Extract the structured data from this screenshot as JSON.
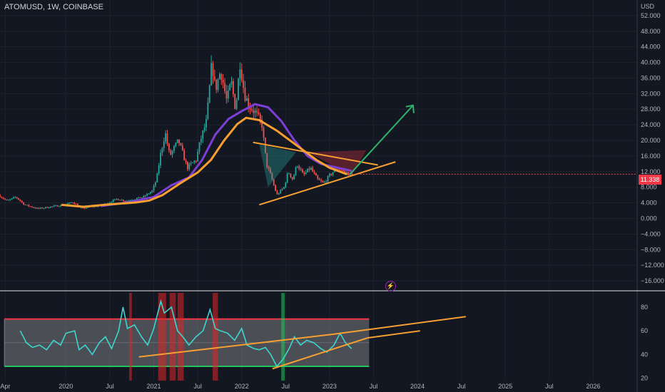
{
  "header": {
    "title": "ATOMUSD, 1W, COINBASE"
  },
  "price_tag": "11.338",
  "icons": {
    "replay": "lightning-icon"
  },
  "colors": {
    "background": "#131722",
    "up": "#26a69a",
    "down": "#ef5350",
    "ma_fast": "#7e3fd6",
    "ma_slow": "#f7a031",
    "rsi": "#3ed6cf",
    "trend": "#f7a031",
    "projection": "#2db36a",
    "band_top": "#f23645",
    "band_bottom": "#22c55e"
  },
  "chart_data": [
    {
      "type": "candlestick",
      "title": "ATOMUSD, 1W, COINBASE",
      "ylabel": "USD",
      "ylim": [
        -18,
        56
      ],
      "y_ticks": [
        "52.000",
        "48.000",
        "44.000",
        "40.000",
        "36.000",
        "32.000",
        "28.000",
        "24.000",
        "20.000",
        "16.000",
        "12.000",
        "8.000",
        "4.000",
        "0.000",
        "−4.000",
        "−8.000",
        "−12.000",
        "−16.000"
      ],
      "x_ticks": [
        "Apr",
        "2020",
        "Jul",
        "2021",
        "Jul",
        "2022",
        "Jul",
        "2023",
        "Jul",
        "2024",
        "Jul",
        "2025",
        "Jul",
        "2026"
      ],
      "x_range": [
        2019.25,
        2026.5
      ],
      "last_price": 11.338,
      "price_path": [
        [
          2019.25,
          6
        ],
        [
          2019.35,
          4.5
        ],
        [
          2019.45,
          5.5
        ],
        [
          2019.55,
          3.5
        ],
        [
          2019.7,
          2.5
        ],
        [
          2019.85,
          3
        ],
        [
          2020.0,
          3.5
        ],
        [
          2020.1,
          4.2
        ],
        [
          2020.2,
          2.5
        ],
        [
          2020.3,
          3
        ],
        [
          2020.4,
          3.2
        ],
        [
          2020.5,
          4
        ],
        [
          2020.6,
          5
        ],
        [
          2020.7,
          4.5
        ],
        [
          2020.8,
          5
        ],
        [
          2020.9,
          5.5
        ],
        [
          2021.0,
          7
        ],
        [
          2021.05,
          10
        ],
        [
          2021.1,
          17
        ],
        [
          2021.15,
          22
        ],
        [
          2021.2,
          16
        ],
        [
          2021.3,
          20
        ],
        [
          2021.4,
          13
        ],
        [
          2021.5,
          15
        ],
        [
          2021.55,
          20
        ],
        [
          2021.62,
          25
        ],
        [
          2021.68,
          40
        ],
        [
          2021.72,
          33
        ],
        [
          2021.78,
          38
        ],
        [
          2021.85,
          30
        ],
        [
          2021.9,
          35
        ],
        [
          2021.95,
          28
        ],
        [
          2022.0,
          40
        ],
        [
          2022.05,
          32
        ],
        [
          2022.1,
          29
        ],
        [
          2022.18,
          27
        ],
        [
          2022.25,
          24
        ],
        [
          2022.3,
          14
        ],
        [
          2022.35,
          11
        ],
        [
          2022.42,
          6
        ],
        [
          2022.5,
          8
        ],
        [
          2022.55,
          12
        ],
        [
          2022.6,
          10
        ],
        [
          2022.65,
          14
        ],
        [
          2022.72,
          11
        ],
        [
          2022.8,
          13
        ],
        [
          2022.88,
          10
        ],
        [
          2022.95,
          9
        ],
        [
          2023.02,
          11
        ],
        [
          2023.1,
          13
        ],
        [
          2023.18,
          12
        ],
        [
          2023.25,
          11.3
        ]
      ],
      "ma_fast": [
        [
          2020.4,
          3.2
        ],
        [
          2020.7,
          4.1
        ],
        [
          2021.0,
          5.5
        ],
        [
          2021.2,
          8.5
        ],
        [
          2021.4,
          10.5
        ],
        [
          2021.55,
          15
        ],
        [
          2021.7,
          21.5
        ],
        [
          2021.85,
          25.5
        ],
        [
          2022.0,
          27.5
        ],
        [
          2022.15,
          29.3
        ],
        [
          2022.3,
          28.5
        ],
        [
          2022.45,
          25
        ],
        [
          2022.6,
          20
        ],
        [
          2022.75,
          16
        ],
        [
          2022.9,
          14
        ],
        [
          2023.05,
          13.2
        ],
        [
          2023.25,
          12.2
        ]
      ],
      "ma_slow": [
        [
          2019.95,
          3.5
        ],
        [
          2020.2,
          3
        ],
        [
          2020.5,
          3.6
        ],
        [
          2020.8,
          4.1
        ],
        [
          2020.95,
          4.6
        ],
        [
          2021.1,
          6
        ],
        [
          2021.3,
          9
        ],
        [
          2021.5,
          11.8
        ],
        [
          2021.65,
          15
        ],
        [
          2021.8,
          20
        ],
        [
          2021.95,
          24.2
        ],
        [
          2022.05,
          25.8
        ],
        [
          2022.2,
          25.2
        ],
        [
          2022.4,
          22.5
        ],
        [
          2022.55,
          20
        ],
        [
          2022.7,
          17.5
        ],
        [
          2022.85,
          15
        ],
        [
          2023.0,
          13
        ],
        [
          2023.2,
          11.3
        ]
      ],
      "lines": [
        {
          "kind": "resistance",
          "points": [
            [
              2022.13,
              19.5
            ],
            [
              2023.55,
              13.7
            ]
          ]
        },
        {
          "kind": "support",
          "points": [
            [
              2022.2,
              3.5
            ],
            [
              2023.75,
              14.5
            ]
          ]
        },
        {
          "kind": "projection",
          "points": [
            [
              2023.23,
              11.3
            ],
            [
              2023.95,
              29
            ]
          ]
        }
      ]
    },
    {
      "type": "line",
      "title": "",
      "ylim": [
        18,
        92
      ],
      "y_ticks": [
        "80",
        "60",
        "40",
        "20"
      ],
      "band": [
        30,
        70
      ],
      "series": [
        {
          "values": [
            [
              2019.48,
              60
            ],
            [
              2019.55,
              50
            ],
            [
              2019.62,
              46
            ],
            [
              2019.7,
              48
            ],
            [
              2019.78,
              44
            ],
            [
              2019.86,
              52
            ],
            [
              2019.94,
              48
            ],
            [
              2020.0,
              58
            ],
            [
              2020.1,
              60
            ],
            [
              2020.15,
              44
            ],
            [
              2020.22,
              48
            ],
            [
              2020.3,
              40
            ],
            [
              2020.38,
              50
            ],
            [
              2020.45,
              55
            ],
            [
              2020.52,
              45
            ],
            [
              2020.6,
              60
            ],
            [
              2020.65,
              80
            ],
            [
              2020.7,
              62
            ],
            [
              2020.78,
              65
            ],
            [
              2020.86,
              55
            ],
            [
              2020.93,
              48
            ],
            [
              2021.0,
              62
            ],
            [
              2021.08,
              85
            ],
            [
              2021.12,
              75
            ],
            [
              2021.2,
              80
            ],
            [
              2021.27,
              60
            ],
            [
              2021.33,
              55
            ],
            [
              2021.4,
              48
            ],
            [
              2021.48,
              55
            ],
            [
              2021.56,
              60
            ],
            [
              2021.64,
              78
            ],
            [
              2021.7,
              62
            ],
            [
              2021.76,
              60
            ],
            [
              2021.84,
              58
            ],
            [
              2021.92,
              52
            ],
            [
              2022.0,
              62
            ],
            [
              2022.06,
              48
            ],
            [
              2022.14,
              45
            ],
            [
              2022.2,
              44
            ],
            [
              2022.27,
              46
            ],
            [
              2022.33,
              40
            ],
            [
              2022.4,
              30
            ],
            [
              2022.47,
              36
            ],
            [
              2022.54,
              45
            ],
            [
              2022.6,
              55
            ],
            [
              2022.67,
              48
            ],
            [
              2022.74,
              52
            ],
            [
              2022.82,
              50
            ],
            [
              2022.9,
              45
            ],
            [
              2022.97,
              42
            ],
            [
              2023.05,
              48
            ],
            [
              2023.12,
              58
            ],
            [
              2023.18,
              50
            ],
            [
              2023.25,
              45
            ]
          ]
        }
      ],
      "lines": [
        {
          "kind": "trend-upper",
          "points": [
            [
              2020.83,
              38
            ],
            [
              2023.03,
              57
            ]
          ]
        },
        {
          "kind": "trend-lower",
          "points": [
            [
              2022.35,
              28
            ],
            [
              2023.43,
              54
            ]
          ]
        },
        {
          "kind": "trend-extension",
          "points": [
            [
              2023.03,
              57
            ],
            [
              2024.55,
              72
            ]
          ]
        },
        {
          "kind": "trend-extension",
          "points": [
            [
              2023.43,
              54
            ],
            [
              2024.03,
              60
            ]
          ]
        }
      ],
      "highlights": [
        {
          "from": 2020.72,
          "to": 2020.75,
          "color": "red"
        },
        {
          "from": 2021.05,
          "to": 2021.14,
          "color": "red"
        },
        {
          "from": 2021.18,
          "to": 2021.25,
          "color": "red"
        },
        {
          "from": 2021.27,
          "to": 2021.34,
          "color": "red"
        },
        {
          "from": 2021.67,
          "to": 2021.73,
          "color": "red"
        },
        {
          "from": 2022.45,
          "to": 2022.49,
          "color": "green"
        }
      ]
    }
  ]
}
